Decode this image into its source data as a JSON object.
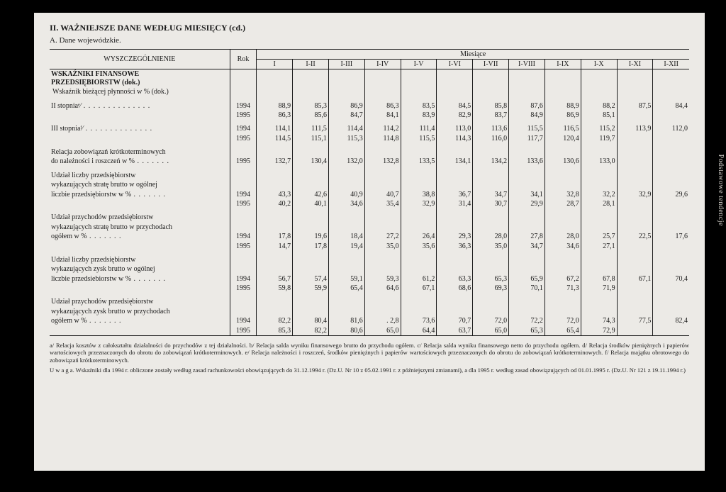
{
  "colors": {
    "page_bg": "#000000",
    "paper_bg": "#eceae6",
    "text": "#1a1a1a",
    "rule": "#1a1a1a",
    "side_label": "#d8d5cf"
  },
  "title": "II.  WAŻNIEJSZE DANE WEDŁUG MIESIĘCY (cd.)",
  "subtitle": "A.  Dane wojewódzkie.",
  "side_label": "Podstawowe tendencje",
  "header": {
    "spec": "WYSZCZEGÓLNIENIE",
    "rok": "Rok",
    "miesiace": "Miesiące",
    "months": [
      "I",
      "I-II",
      "I-III",
      "I-IV",
      "I-V",
      "I-VI",
      "I-VII",
      "I-VIII",
      "I-IX",
      "I-X",
      "I-XI",
      "I-XII"
    ]
  },
  "section_head": {
    "l1": "WSKAŹNIKI FINANSOWE",
    "l2": "PRZEDSIĘBIORSTW (dok.)",
    "l3": "Wskaźnik bieżącej płynności  w % (dok.)"
  },
  "rows": [
    {
      "label": "II stopniaᵉ⁄",
      "indent": true,
      "years": [
        {
          "rok": "1994",
          "v": [
            "88,9",
            "85,3",
            "86,9",
            "86,3",
            "83,5",
            "84,5",
            "85,8",
            "87,6",
            "88,9",
            "88,2",
            "87,5",
            "84,4"
          ]
        },
        {
          "rok": "1995",
          "v": [
            "86,3",
            "85,6",
            "84,7",
            "84,1",
            "83,9",
            "82,9",
            "83,7",
            "84,9",
            "86,9",
            "85,1",
            "",
            ""
          ]
        }
      ]
    },
    {
      "label": "III stopniaᶠ⁄",
      "indent": true,
      "years": [
        {
          "rok": "1994",
          "v": [
            "114,1",
            "111,5",
            "114,4",
            "114,2",
            "111,4",
            "113,0",
            "113,6",
            "115,5",
            "116,5",
            "115,2",
            "113,9",
            "112,0"
          ]
        },
        {
          "rok": "1995",
          "v": [
            "114,5",
            "115,1",
            "115,3",
            "114,8",
            "115,5",
            "114,3",
            "116,0",
            "117,7",
            "120,4",
            "119,7",
            "",
            ""
          ]
        }
      ]
    },
    {
      "label_lines": [
        "Relacja zobowiązań krótkoterminowych",
        "do należności i roszczeń w %"
      ],
      "years": [
        {
          "rok": "1995",
          "v": [
            "132,7",
            "130,4",
            "132,0",
            "132,8",
            "133,5",
            "134,1",
            "134,2",
            "133,6",
            "130,6",
            "133,0",
            "",
            ""
          ]
        }
      ]
    },
    {
      "label_lines": [
        "Udział liczby przedsiębiorstw",
        "wykazujących stratę brutto w ogólnej",
        "liczbie przedsiębiorstw w %"
      ],
      "years": [
        {
          "rok": "1994",
          "v": [
            "43,3",
            "42,6",
            "40,9",
            "40,7",
            "38,8",
            "36,7",
            "34,7",
            "34,1",
            "32,8",
            "32,2",
            "32,9",
            "29,6"
          ]
        },
        {
          "rok": "1995",
          "v": [
            "40,2",
            "40,1",
            "34,6",
            "35,4",
            "32,9",
            "31,4",
            "30,7",
            "29,9",
            "28,7",
            "28,1",
            "",
            ""
          ]
        }
      ]
    },
    {
      "label_lines": [
        "Udział przychodów przedsiębiorstw",
        "wykazujących stratę brutto w przychodach",
        "ogółem w %"
      ],
      "years": [
        {
          "rok": "1994",
          "v": [
            "17,8",
            "19,6",
            "18,4",
            "27,2",
            "26,4",
            "29,3",
            "28,0",
            "27,8",
            "28,0",
            "25,7",
            "22,5",
            "17,6"
          ]
        },
        {
          "rok": "1995",
          "v": [
            "14,7",
            "17,8",
            "19,4",
            "35,0",
            "35,6",
            "36,3",
            "35,0",
            "34,7",
            "34,6",
            "27,1",
            "",
            ""
          ]
        }
      ]
    },
    {
      "label_lines": [
        "Udział liczby przedsiębiorstw",
        "wykazujących zysk brutto w ogólnej",
        "liczbie przedsiebiorstw w %"
      ],
      "years": [
        {
          "rok": "1994",
          "v": [
            "56,7",
            "57,4",
            "59,1",
            "59,3",
            "61,2",
            "63,3",
            "65,3",
            "65,9",
            "67,2",
            "67,8",
            "67,1",
            "70,4"
          ]
        },
        {
          "rok": "1995",
          "v": [
            "59,8",
            "59,9",
            "65,4",
            "64,6",
            "67,1",
            "68,6",
            "69,3",
            "70,1",
            "71,3",
            "71,9",
            "",
            ""
          ]
        }
      ]
    },
    {
      "label_lines": [
        "Udział przychodów przedsiębiorstw",
        "wykazujących zysk brutto w przychodach",
        "ogółem w %"
      ],
      "years": [
        {
          "rok": "1994",
          "v": [
            "82,2",
            "80,4",
            "81,6",
            ". 2,8",
            "73,6",
            "70,7",
            "72,0",
            "72,2",
            "72,0",
            "74,3",
            "77,5",
            "82,4"
          ]
        },
        {
          "rok": "1995",
          "v": [
            "85,3",
            "82,2",
            "80,6",
            "65,0",
            "64,4",
            "63,7",
            "65,0",
            "65,3",
            "65,4",
            "72,9",
            "",
            ""
          ]
        }
      ]
    }
  ],
  "footnotes": {
    "p1": "a/ Relacja kosztów z całokształtu działalności do przychodów z tej działalności. b/ Relacja salda wyniku finansowego brutto do przychodu ogółem.   c/ Relacja salda wyniku finansowego netto do przychodu ogółem. d/ Relacja środków pieniężnych i papierów wartościowych przeznaczonych do obrotu do zobowiązań krótkoterminowych. e/ Relacja należności i roszczeń, środków pieniężnych i papierów wartościowych przeznaczonych do obrotu do zobowiązań krótkoterminowych. f/ Relacja majątku obrotowego do zobowiązań krótkoterminowych.",
    "p2": "U w a g a.  Wskaźniki dla 1994 r. obliczone zostały według zasad rachunkowości obowiązujących do 31.12.1994 r. (Dz.U. Nr 10 z 05.02.1991 r. z późniejszymi zmianami),  a dla 1995 r. według zasad obowiązujących od 01.01.1995 r. (Dz.U. Nr 121 z 19.11.1994 r.)"
  }
}
